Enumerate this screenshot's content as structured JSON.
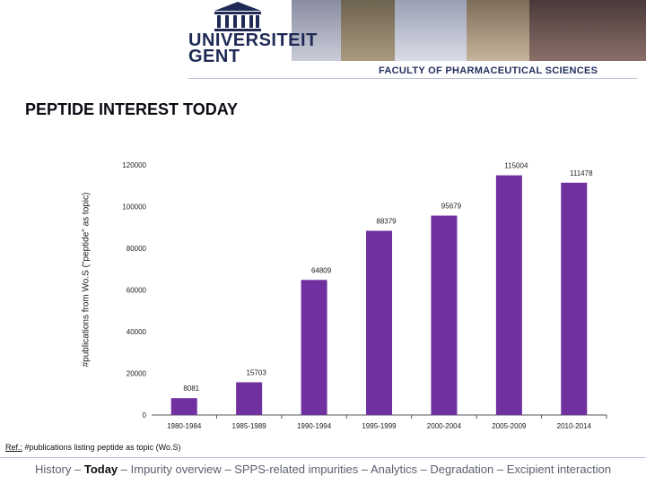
{
  "header": {
    "university_line1": "UNIVERSITEIT",
    "university_line2": "GENT",
    "faculty": "FACULTY OF PHARMACEUTICAL SCIENCES"
  },
  "slide": {
    "title": "PEPTIDE INTEREST TODAY"
  },
  "chart_data": {
    "type": "bar",
    "ylabel": "#publications from Wo.S (\"peptide\" as topic)",
    "categories": [
      "1980-1984",
      "1985-1989",
      "1990-1994",
      "1995-1999",
      "2000-2004",
      "2005-2009",
      "2010-2014"
    ],
    "values": [
      8081,
      15703,
      64809,
      88379,
      95679,
      115004,
      111478
    ],
    "data_labels": [
      "8081",
      "15703",
      "64809",
      "88379",
      "95679",
      "115004",
      "111478"
    ],
    "y_ticks": [
      0,
      20000,
      40000,
      60000,
      80000,
      100000,
      120000
    ],
    "ylim": [
      0,
      120000
    ],
    "bar_color": "#7030a0"
  },
  "reference": {
    "prefix": "Ref.:",
    "text": " #publications listing peptide as topic (Wo.S)"
  },
  "footer": {
    "before": "History – ",
    "current": "Today",
    "after": " – Impurity overview – SPPS-related impurities – Analytics – Degradation – Excipient interaction"
  }
}
